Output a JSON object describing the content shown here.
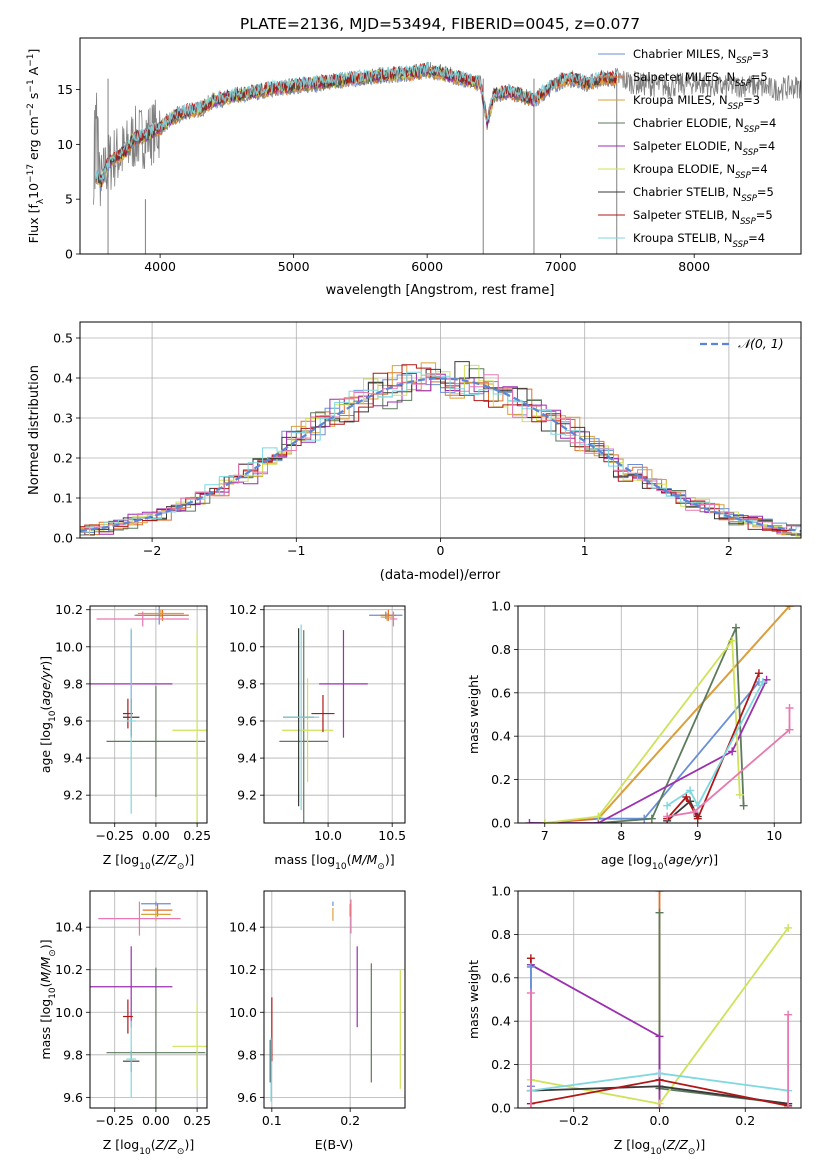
{
  "figure": {
    "title": "PLATE=2136, MJD=53494, FIBERID=0045, z=0.077"
  },
  "series_colors": {
    "Chabrier MILES": "#6a8fd8",
    "Salpeter MILES": "#e0702a",
    "Kroupa MILES": "#d9a13a",
    "Chabrier ELODIE": "#5c7a5c",
    "Salpeter ELODIE": "#9b2fb0",
    "Kroupa ELODIE": "#cfe25a",
    "Chabrier STELIB": "#3a3a3a",
    "Salpeter STELIB": "#b01818",
    "Kroupa STELIB": "#7fd7e0",
    "data": "#808080",
    "normal": "#5b86d8",
    "pink": "#e879b0"
  },
  "chart_data": [
    {
      "id": "spectrum",
      "type": "line",
      "xlabel": "wavelength [Angstrom, rest frame]",
      "ylabel": "Flux [f_λ 10^-17 erg cm^-2 s^-1 A^-1]",
      "xlim": [
        3400,
        8800
      ],
      "ylim": [
        0,
        19.7
      ],
      "xticks": [
        "4000",
        "5000",
        "6000",
        "7000",
        "8000"
      ],
      "yticks": [
        "0",
        "5",
        "10",
        "15"
      ],
      "legend_position": "upper right",
      "legend": [
        "Chabrier MILES, N_SSP=3",
        "Salpeter MILES, N_SSP=5",
        "Kroupa MILES, N_SSP=3",
        "Chabrier ELODIE, N_SSP=4",
        "Salpeter ELODIE, N_SSP=4",
        "Kroupa ELODIE, N_SSP=4",
        "Chabrier STELIB, N_SSP=5",
        "Salpeter STELIB, N_SSP=5",
        "Kroupa STELIB, N_SSP=4"
      ],
      "continuum": {
        "x": [
          3500,
          3560,
          3600,
          3650,
          3700,
          3750,
          3800,
          3900,
          4000,
          4100,
          4200,
          4300,
          4400,
          4600,
          4800,
          5000,
          5200,
          5400,
          5600,
          5800,
          5900,
          6000,
          6100,
          6200,
          6300,
          6400,
          6450,
          6500,
          6600,
          6700,
          6800,
          6900,
          7000,
          7100,
          7200,
          7300,
          7420
        ],
        "y": [
          7.5,
          6.5,
          8.0,
          8.8,
          9.0,
          9.5,
          10.5,
          10.8,
          11.5,
          12.5,
          13.0,
          13.2,
          14.0,
          14.5,
          15.0,
          15.3,
          15.6,
          15.9,
          16.2,
          16.4,
          16.5,
          16.8,
          16.5,
          16.2,
          15.9,
          15.5,
          12.0,
          14.5,
          14.8,
          14.5,
          14.0,
          15.0,
          15.8,
          16.0,
          15.5,
          16.0,
          16.0
        ]
      },
      "observed_extra_x": [
        7420,
        7600,
        7800,
        8000,
        8200,
        8400,
        8600,
        8800
      ],
      "observed_extra_y": [
        15.0,
        15.5,
        15.3,
        15.6,
        15.2,
        15.4,
        15.0,
        15.3
      ]
    },
    {
      "id": "residuals",
      "type": "bar",
      "xlabel": "(data-model)/error",
      "ylabel": "Normed distribution",
      "xlim": [
        -2.5,
        2.5
      ],
      "ylim": [
        0,
        0.54
      ],
      "xticks": [
        "−2",
        "−1",
        "0",
        "1",
        "2"
      ],
      "yticks": [
        "0.0",
        "0.1",
        "0.2",
        "0.3",
        "0.4",
        "0.5"
      ],
      "legend_position": "upper right",
      "legend": [
        "𝒩(0, 1)"
      ],
      "normal_mean": 0,
      "normal_sigma": 1
    },
    {
      "id": "age-vs-Z",
      "type": "scatter",
      "xlabel": "Z [log10(Z/Z⊙)]",
      "ylabel": "age  [log10(age/yr)]",
      "xlim": [
        -0.4,
        0.31
      ],
      "ylim": [
        9.05,
        10.22
      ],
      "xticks": [
        "−0.25",
        "0.00",
        "0.25"
      ],
      "yticks": [
        "9.2",
        "9.4",
        "9.6",
        "9.8",
        "10.0",
        "10.2"
      ],
      "points": [
        {
          "model": "Chabrier MILES",
          "x": 0.02,
          "y": 10.17,
          "xerr": 0.15,
          "yerr": 0.05
        },
        {
          "model": "Salpeter MILES",
          "x": 0.04,
          "y": 10.17,
          "xerr": 0.16,
          "yerr": 0.03
        },
        {
          "model": "Kroupa MILES",
          "x": 0.03,
          "y": 10.18,
          "xerr": 0.14,
          "yerr": 0.02
        },
        {
          "model": "Chabrier ELODIE",
          "x": 0.0,
          "y": 9.49,
          "xerr": 0.3,
          "yerr": 0.3
        },
        {
          "model": "Salpeter ELODIE",
          "x": -0.15,
          "y": 9.8,
          "xerr": 0.25,
          "yerr": 0.29
        },
        {
          "model": "Kroupa ELODIE",
          "x": 0.25,
          "y": 9.55,
          "xerr": 0.15,
          "yerr": 0.52
        },
        {
          "model": "Chabrier STELIB",
          "x": -0.15,
          "y": 9.62,
          "xerr": 0.05,
          "yerr": 0.1
        },
        {
          "model": "Salpeter STELIB",
          "x": -0.17,
          "y": 9.64,
          "xerr": 0.03,
          "yerr": 0.08
        },
        {
          "model": "Kroupa STELIB",
          "x": -0.15,
          "y": 9.6,
          "xerr": 0.03,
          "yerr": 0.5
        },
        {
          "model": "pink",
          "x": -0.08,
          "y": 10.15,
          "xerr": 0.28,
          "yerr": 0.04
        }
      ]
    },
    {
      "id": "age-vs-mass",
      "type": "scatter",
      "xlabel": "mass [log10(M/M⊙)]",
      "ylabel": "",
      "xlim": [
        9.5,
        10.6
      ],
      "ylim": [
        9.05,
        10.22
      ],
      "xticks": [
        "10.0",
        "10.5"
      ],
      "yticks": [
        "9.2",
        "9.4",
        "9.6",
        "9.8",
        "10.0",
        "10.2"
      ],
      "points": [
        {
          "model": "Chabrier MILES",
          "x": 10.45,
          "y": 10.17,
          "xerr": 0.13,
          "yerr": 0.02
        },
        {
          "model": "Salpeter MILES",
          "x": 10.47,
          "y": 10.17,
          "xerr": 0.06,
          "yerr": 0.03
        },
        {
          "model": "Kroupa MILES",
          "x": 10.46,
          "y": 10.16,
          "xerr": 0.05,
          "yerr": 0.02
        },
        {
          "model": "Chabrier ELODIE",
          "x": 9.81,
          "y": 9.49,
          "xerr": 0.19,
          "yerr": 0.6
        },
        {
          "model": "Salpeter ELODIE",
          "x": 10.12,
          "y": 9.8,
          "xerr": 0.19,
          "yerr": 0.29
        },
        {
          "model": "Kroupa ELODIE",
          "x": 9.84,
          "y": 9.55,
          "xerr": 0.2,
          "yerr": 0.28
        },
        {
          "model": "Chabrier STELIB",
          "x": 9.77,
          "y": 9.62,
          "xerr": 0.12,
          "yerr": 0.48
        },
        {
          "model": "Salpeter STELIB",
          "x": 9.96,
          "y": 9.64,
          "xerr": 0.09,
          "yerr": 0.1
        },
        {
          "model": "Kroupa STELIB",
          "x": 9.79,
          "y": 9.62,
          "xerr": 0.14,
          "yerr": 0.5
        },
        {
          "model": "pink",
          "x": 10.51,
          "y": 10.15,
          "xerr": 0.03,
          "yerr": 0.04
        }
      ]
    },
    {
      "id": "weight-vs-age",
      "type": "line",
      "xlabel": "age  [log10(age/yr)]",
      "ylabel": "mass weight",
      "xlim": [
        6.65,
        10.35
      ],
      "ylim": [
        0,
        1.0
      ],
      "xticks": [
        "7",
        "8",
        "9",
        "10"
      ],
      "yticks": [
        "0.0",
        "0.2",
        "0.4",
        "0.6",
        "0.8",
        "1.0"
      ],
      "series": [
        {
          "model": "Salpeter MILES",
          "x": [
            7.0,
            7.7,
            10.2
          ],
          "y": [
            0.0,
            0.02,
            1.0
          ]
        },
        {
          "model": "Kroupa MILES",
          "x": [
            7.7,
            10.2
          ],
          "y": [
            0.02,
            1.0
          ]
        },
        {
          "model": "Chabrier MILES",
          "x": [
            7.7,
            8.3,
            9.8
          ],
          "y": [
            0.02,
            0.02,
            0.65
          ]
        },
        {
          "model": "Chabrier ELODIE",
          "x": [
            7.7,
            8.4,
            9.5,
            9.6
          ],
          "y": [
            0.0,
            0.02,
            0.9,
            0.08
          ]
        },
        {
          "model": "Salpeter ELODIE",
          "x": [
            6.8,
            7.7,
            9.45,
            9.9
          ],
          "y": [
            0.0,
            0.0,
            0.33,
            0.66
          ]
        },
        {
          "model": "Kroupa ELODIE",
          "x": [
            7.0,
            7.7,
            9.45,
            9.55
          ],
          "y": [
            0.0,
            0.03,
            0.84,
            0.13
          ]
        },
        {
          "model": "Chabrier STELIB",
          "x": [
            8.6,
            8.9,
            9.0
          ],
          "y": [
            0.01,
            0.1,
            0.03
          ]
        },
        {
          "model": "Salpeter STELIB",
          "x": [
            8.6,
            8.85,
            9.0,
            9.8
          ],
          "y": [
            0.02,
            0.12,
            0.02,
            0.69
          ]
        },
        {
          "model": "Kroupa STELIB",
          "x": [
            8.6,
            8.9,
            9.0,
            9.85
          ],
          "y": [
            0.08,
            0.15,
            0.08,
            0.65
          ]
        },
        {
          "model": "pink",
          "x": [
            8.6,
            8.95,
            10.2,
            10.2
          ],
          "y": [
            0.03,
            0.05,
            0.43,
            0.53
          ]
        }
      ]
    },
    {
      "id": "mass-vs-Z",
      "type": "scatter",
      "xlabel": "Z [log10(Z/Z⊙)]",
      "ylabel": "mass [log10(M/M⊙)]",
      "xlim": [
        -0.4,
        0.31
      ],
      "ylim": [
        9.55,
        10.57
      ],
      "xticks": [
        "−0.25",
        "0.00",
        "0.25"
      ],
      "yticks": [
        "9.6",
        "9.8",
        "10.0",
        "10.2",
        "10.4"
      ],
      "points": [
        {
          "model": "Chabrier MILES",
          "x": 0.0,
          "y": 10.51,
          "xerr": 0.09,
          "yerr": 0.01
        },
        {
          "model": "Salpeter MILES",
          "x": 0.01,
          "y": 10.48,
          "xerr": 0.09,
          "yerr": 0.03
        },
        {
          "model": "Kroupa MILES",
          "x": 0.0,
          "y": 10.46,
          "xerr": 0.09,
          "yerr": 0.03
        },
        {
          "model": "Chabrier ELODIE",
          "x": 0.0,
          "y": 9.81,
          "xerr": 0.3,
          "yerr": 0.4
        },
        {
          "model": "Salpeter ELODIE",
          "x": -0.15,
          "y": 10.12,
          "xerr": 0.25,
          "yerr": 0.19
        },
        {
          "model": "Kroupa ELODIE",
          "x": 0.25,
          "y": 9.84,
          "xerr": 0.15,
          "yerr": 0.2
        },
        {
          "model": "Chabrier STELIB",
          "x": -0.15,
          "y": 9.77,
          "xerr": 0.05,
          "yerr": 0.05
        },
        {
          "model": "Salpeter STELIB",
          "x": -0.17,
          "y": 9.98,
          "xerr": 0.03,
          "yerr": 0.08
        },
        {
          "model": "Kroupa STELIB",
          "x": -0.15,
          "y": 9.78,
          "xerr": 0.03,
          "yerr": 0.18
        },
        {
          "model": "pink",
          "x": -0.1,
          "y": 10.44,
          "xerr": 0.25,
          "yerr": 0.08
        }
      ]
    },
    {
      "id": "mass-vs-EBV",
      "type": "scatter",
      "xlabel": "E(B-V)",
      "ylabel": "",
      "xlim": [
        0.09,
        0.27
      ],
      "ylim": [
        9.55,
        10.57
      ],
      "xticks": [
        "0.1",
        "0.2"
      ],
      "yticks": [
        "9.6",
        "9.8",
        "10.0",
        "10.2",
        "10.4"
      ],
      "points": [
        {
          "model": "Chabrier MILES",
          "x": 0.178,
          "y": 10.51,
          "xerr": 0,
          "yerr": 0.01
        },
        {
          "model": "Salpeter MILES",
          "x": 0.2,
          "y": 10.48,
          "xerr": 0,
          "yerr": 0.03
        },
        {
          "model": "Kroupa MILES",
          "x": 0.178,
          "y": 10.46,
          "xerr": 0,
          "yerr": 0.03
        },
        {
          "model": "Chabrier ELODIE",
          "x": 0.227,
          "y": 9.95,
          "xerr": 0,
          "yerr": 0.28
        },
        {
          "model": "Salpeter ELODIE",
          "x": 0.209,
          "y": 10.12,
          "xerr": 0,
          "yerr": 0.19
        },
        {
          "model": "Kroupa ELODIE",
          "x": 0.264,
          "y": 9.92,
          "xerr": 0,
          "yerr": 0.28
        },
        {
          "model": "Chabrier STELIB",
          "x": 0.098,
          "y": 9.77,
          "xerr": 0,
          "yerr": 0.1
        },
        {
          "model": "Salpeter STELIB",
          "x": 0.1,
          "y": 9.92,
          "xerr": 0,
          "yerr": 0.15
        },
        {
          "model": "Kroupa STELIB",
          "x": 0.099,
          "y": 9.73,
          "xerr": 0,
          "yerr": 0.15
        },
        {
          "model": "pink",
          "x": 0.201,
          "y": 10.45,
          "xerr": 0,
          "yerr": 0.08
        }
      ]
    },
    {
      "id": "weight-vs-Z",
      "type": "line",
      "xlabel": "Z [log10(Z/Z⊙)]",
      "ylabel": "mass weight",
      "xlim": [
        -0.33,
        0.33
      ],
      "ylim": [
        0,
        1.0
      ],
      "xticks": [
        "−0.2",
        "0.0",
        "0.2"
      ],
      "yticks": [
        "0.0",
        "0.2",
        "0.4",
        "0.6",
        "0.8",
        "1.0"
      ],
      "series": [
        {
          "model": "Salpeter MILES",
          "x": [
            0.0,
            0.0
          ],
          "y": [
            0.0,
            1.0
          ]
        },
        {
          "model": "Chabrier ELODIE",
          "x": [
            0.0,
            0.0,
            0.3
          ],
          "y": [
            0.9,
            0.09,
            0.02
          ]
        },
        {
          "model": "Salpeter ELODIE",
          "x": [
            -0.3,
            0.0,
            0.0
          ],
          "y": [
            0.66,
            0.33,
            0.0
          ]
        },
        {
          "model": "Kroupa ELODIE",
          "x": [
            -0.3,
            0.0,
            0.3
          ],
          "y": [
            0.13,
            0.02,
            0.83
          ]
        },
        {
          "model": "Chabrier STELIB",
          "x": [
            -0.3,
            0.0,
            0.3
          ],
          "y": [
            0.08,
            0.1,
            0.02
          ]
        },
        {
          "model": "Salpeter STELIB",
          "x": [
            -0.3,
            -0.3,
            0.0,
            0.3
          ],
          "y": [
            0.69,
            0.02,
            0.13,
            0.01
          ]
        },
        {
          "model": "Kroupa STELIB",
          "x": [
            -0.3,
            -0.3,
            0.0,
            0.3
          ],
          "y": [
            0.65,
            0.08,
            0.16,
            0.08
          ]
        },
        {
          "model": "Chabrier MILES",
          "x": [
            -0.3,
            -0.3
          ],
          "y": [
            0.65,
            0.1
          ]
        },
        {
          "model": "pink",
          "x": [
            -0.3,
            -0.3,
            0.0,
            0.3,
            0.3
          ],
          "y": [
            0.53,
            0.0,
            0.0,
            0.0,
            0.43
          ]
        }
      ]
    }
  ]
}
